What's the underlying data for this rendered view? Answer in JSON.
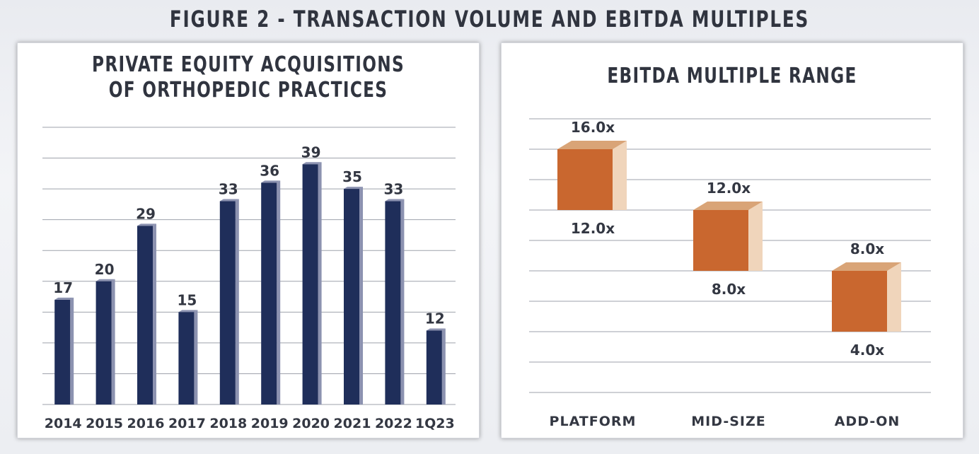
{
  "figure": {
    "title": "FIGURE 2 - TRANSACTION VOLUME AND EBITDA MULTIPLES"
  },
  "colors": {
    "bar_front": "#1f2e5a",
    "bar_side": "#8c92b0",
    "box_front": "#c9672f",
    "box_top": "#d9a477",
    "box_side": "#f0d5bb",
    "grid": "#9ea2ab"
  },
  "chart_data": [
    {
      "type": "bar",
      "title_line1": "PRIVATE EQUITY ACQUISITIONS",
      "title_line2": "OF ORTHOPEDIC PRACTICES",
      "categories": [
        "2014",
        "2015",
        "2016",
        "2017",
        "2018",
        "2019",
        "2020",
        "2021",
        "2022",
        "1Q23"
      ],
      "values": [
        17,
        20,
        29,
        15,
        33,
        36,
        39,
        35,
        33,
        12
      ],
      "data_labels": [
        "17",
        "20",
        "29",
        "15",
        "33",
        "36",
        "39",
        "35",
        "33",
        "12"
      ],
      "ylim": [
        0,
        45
      ],
      "grid": true
    },
    {
      "type": "floating_bar",
      "title": "EBITDA MULTIPLE RANGE",
      "categories": [
        "PLATFORM",
        "MID-SIZE",
        "ADD-ON"
      ],
      "low": [
        12.0,
        8.0,
        4.0
      ],
      "high": [
        16.0,
        12.0,
        8.0
      ],
      "high_labels": [
        "16.0x",
        "12.0x",
        "8.0x"
      ],
      "low_labels": [
        "12.0x",
        "8.0x",
        "4.0x"
      ],
      "ylim": [
        0,
        18
      ],
      "grid": true
    }
  ]
}
